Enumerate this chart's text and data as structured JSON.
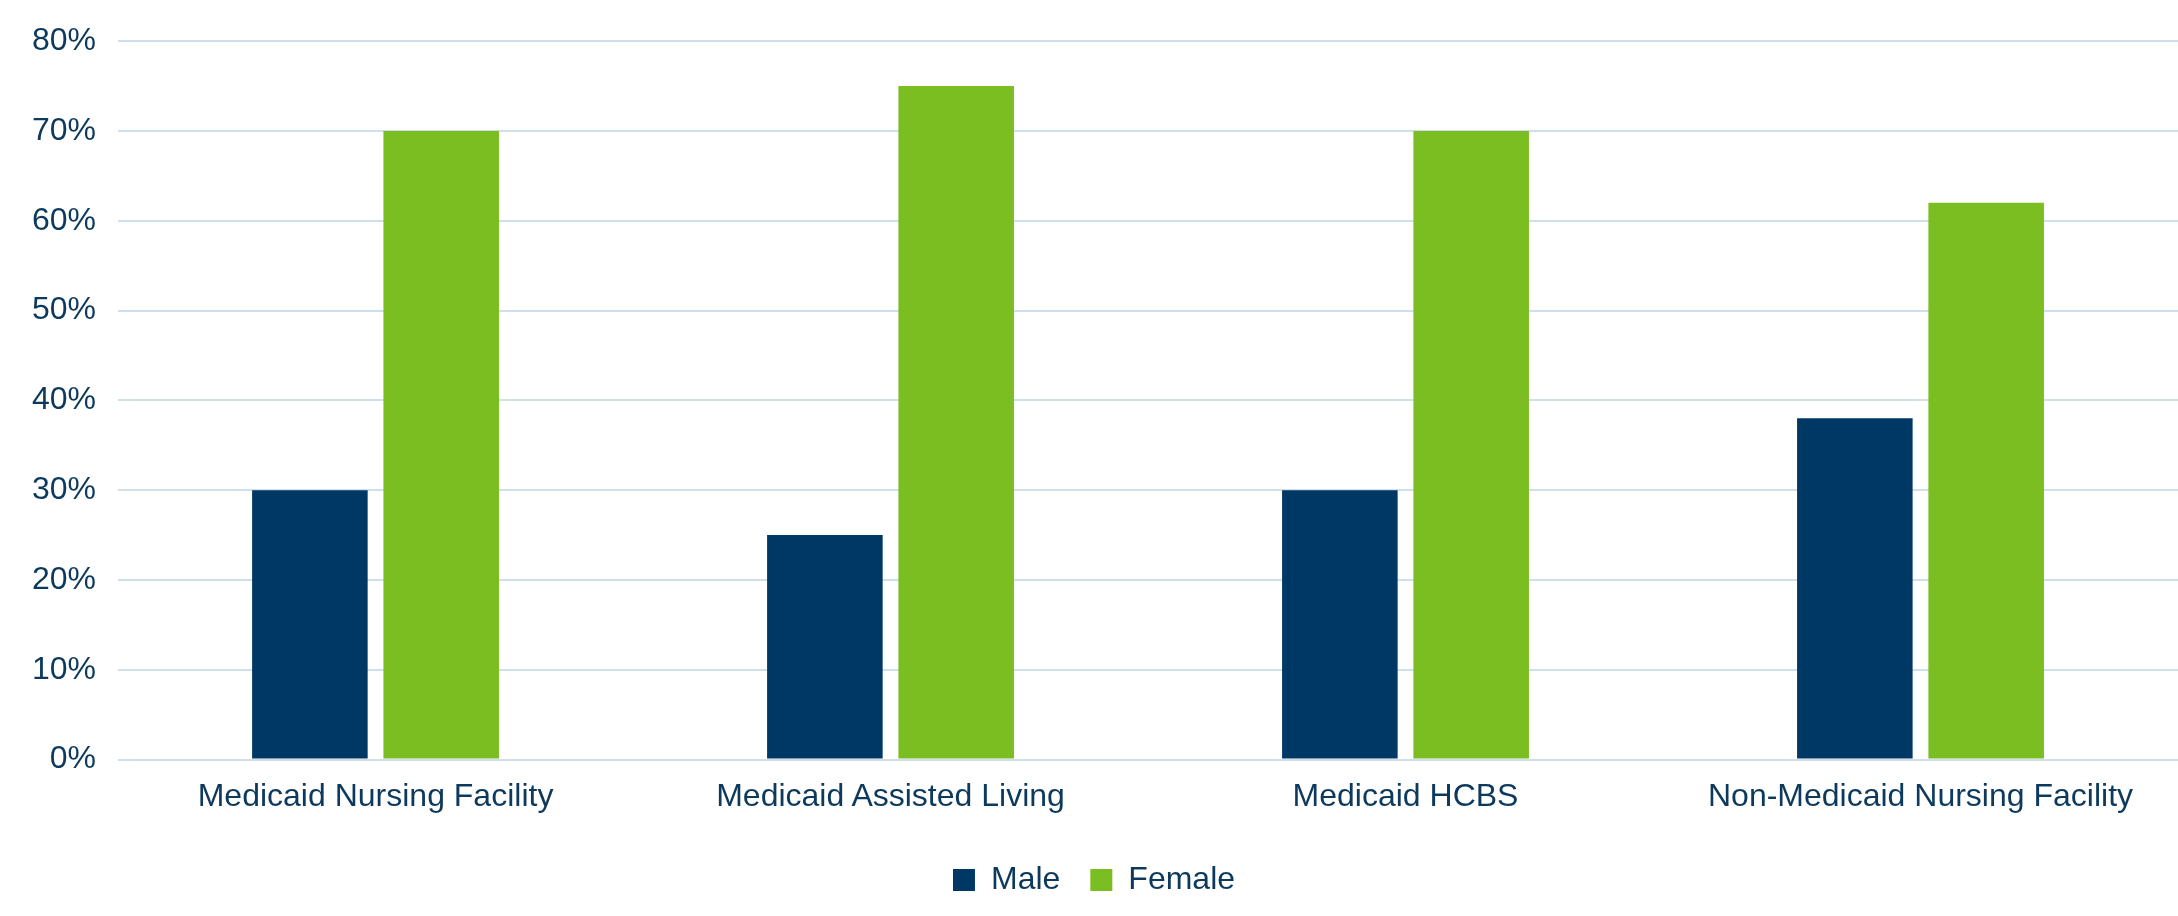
{
  "chart_data": {
    "type": "bar",
    "categories": [
      "Medicaid Nursing Facility",
      "Medicaid Assisted Living",
      "Medicaid HCBS",
      "Non-Medicaid Nursing Facility"
    ],
    "series": [
      {
        "name": "Male",
        "color": "#003865",
        "values": [
          30,
          25,
          30,
          38
        ]
      },
      {
        "name": "Female",
        "color": "#7bbe21",
        "values": [
          70,
          75,
          70,
          62
        ]
      }
    ],
    "ylim": [
      0,
      80
    ],
    "yticks": [
      {
        "value": 0,
        "label": "0%"
      },
      {
        "value": 10,
        "label": "10%"
      },
      {
        "value": 20,
        "label": "20%"
      },
      {
        "value": 30,
        "label": "30%"
      },
      {
        "value": 40,
        "label": "40%"
      },
      {
        "value": 50,
        "label": "50%"
      },
      {
        "value": 60,
        "label": "60%"
      },
      {
        "value": 70,
        "label": "70%"
      },
      {
        "value": 80,
        "label": "80%"
      }
    ],
    "grid": "y",
    "legend": "bottom"
  }
}
